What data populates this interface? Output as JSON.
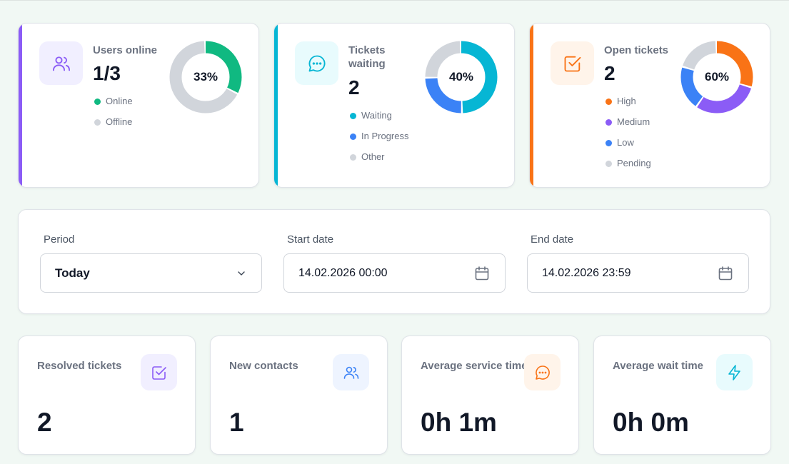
{
  "colors": {
    "purple": "#8b5cf6",
    "cyan": "#06b6d4",
    "orange": "#f97316",
    "green": "#10b981",
    "blue": "#3b82f6",
    "gray": "#d1d5db"
  },
  "stats": [
    {
      "label": "Users online",
      "value": "1/3",
      "accent": "#8b5cf6",
      "icon": "users-icon",
      "percent_label": "33%",
      "legend": [
        {
          "label": "Online",
          "color": "#10b981"
        },
        {
          "label": "Offline",
          "color": "#d1d5db"
        }
      ],
      "slices": [
        {
          "value": 33,
          "color": "#10b981"
        },
        {
          "value": 67,
          "color": "#d1d5db"
        }
      ]
    },
    {
      "label": "Tickets waiting",
      "value": "2",
      "accent": "#06b6d4",
      "icon": "chat-bubble-icon",
      "percent_label": "40%",
      "legend": [
        {
          "label": "Waiting",
          "color": "#06b6d4"
        },
        {
          "label": "In Progress",
          "color": "#3b82f6"
        },
        {
          "label": "Other",
          "color": "#d1d5db"
        }
      ],
      "slices": [
        {
          "value": 50,
          "color": "#06b6d4"
        },
        {
          "value": 25,
          "color": "#3b82f6"
        },
        {
          "value": 25,
          "color": "#d1d5db"
        }
      ]
    },
    {
      "label": "Open tickets",
      "value": "2",
      "accent": "#f97316",
      "icon": "checkbox-icon",
      "percent_label": "60%",
      "legend": [
        {
          "label": "High",
          "color": "#f97316"
        },
        {
          "label": "Medium",
          "color": "#8b5cf6"
        },
        {
          "label": "Low",
          "color": "#3b82f6"
        },
        {
          "label": "Pending",
          "color": "#d1d5db"
        }
      ],
      "slices": [
        {
          "value": 30,
          "color": "#f97316"
        },
        {
          "value": 30,
          "color": "#8b5cf6"
        },
        {
          "value": 20,
          "color": "#3b82f6"
        },
        {
          "value": 20,
          "color": "#d1d5db"
        }
      ]
    }
  ],
  "filters": {
    "period_label": "Period",
    "period_value": "Today",
    "start_label": "Start date",
    "start_value": "14.02.2026 00:00",
    "end_label": "End date",
    "end_value": "14.02.2026 23:59"
  },
  "metrics": [
    {
      "label": "Resolved tickets",
      "value": "2",
      "icon": "checkbox-icon",
      "color": "#8b5cf6"
    },
    {
      "label": "New contacts",
      "value": "1",
      "icon": "users-icon",
      "color": "#3b82f6"
    },
    {
      "label": "Average service time",
      "value": "0h 1m",
      "icon": "chat-bubble-icon",
      "color": "#f97316"
    },
    {
      "label": "Average wait time",
      "value": "0h 0m",
      "icon": "lightning-icon",
      "color": "#06b6d4"
    }
  ]
}
